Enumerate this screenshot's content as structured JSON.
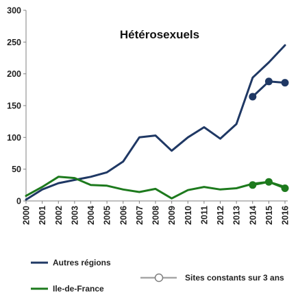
{
  "chart_data": {
    "type": "line",
    "title": "Hétérosexuels",
    "xlabel": "",
    "ylabel": "",
    "grid": false,
    "x": [
      "2000",
      "2001",
      "2002",
      "2003",
      "2004",
      "2005",
      "2006",
      "2007",
      "2008",
      "2009",
      "2010",
      "2011",
      "2012",
      "2013",
      "2014",
      "2015",
      "2016"
    ],
    "ylim": [
      0,
      300
    ],
    "yticks": [
      "0",
      "50",
      "100",
      "150",
      "200",
      "250",
      "300"
    ],
    "series": [
      {
        "name": "Autres régions",
        "color": "#1f3864",
        "values": [
          2,
          18,
          28,
          33,
          38,
          45,
          62,
          100,
          103,
          79,
          100,
          116,
          98,
          121,
          194,
          218,
          245
        ]
      },
      {
        "name": "Ile-de-France",
        "color": "#1d7a1d",
        "values": [
          8,
          22,
          38,
          36,
          25,
          24,
          18,
          14,
          19,
          4,
          17,
          22,
          18,
          20,
          27,
          30,
          22
        ]
      }
    ],
    "constant_sites": {
      "name": "Sites constants sur 3 ans",
      "x": [
        "2014",
        "2015",
        "2016"
      ],
      "series": [
        {
          "name": "Autres régions",
          "color": "#1f3864",
          "values": [
            164,
            188,
            186
          ]
        },
        {
          "name": "Ile-de-France",
          "color": "#1d7a1d",
          "values": [
            25,
            30,
            20
          ]
        }
      ]
    },
    "legend_placement": "bottom"
  }
}
